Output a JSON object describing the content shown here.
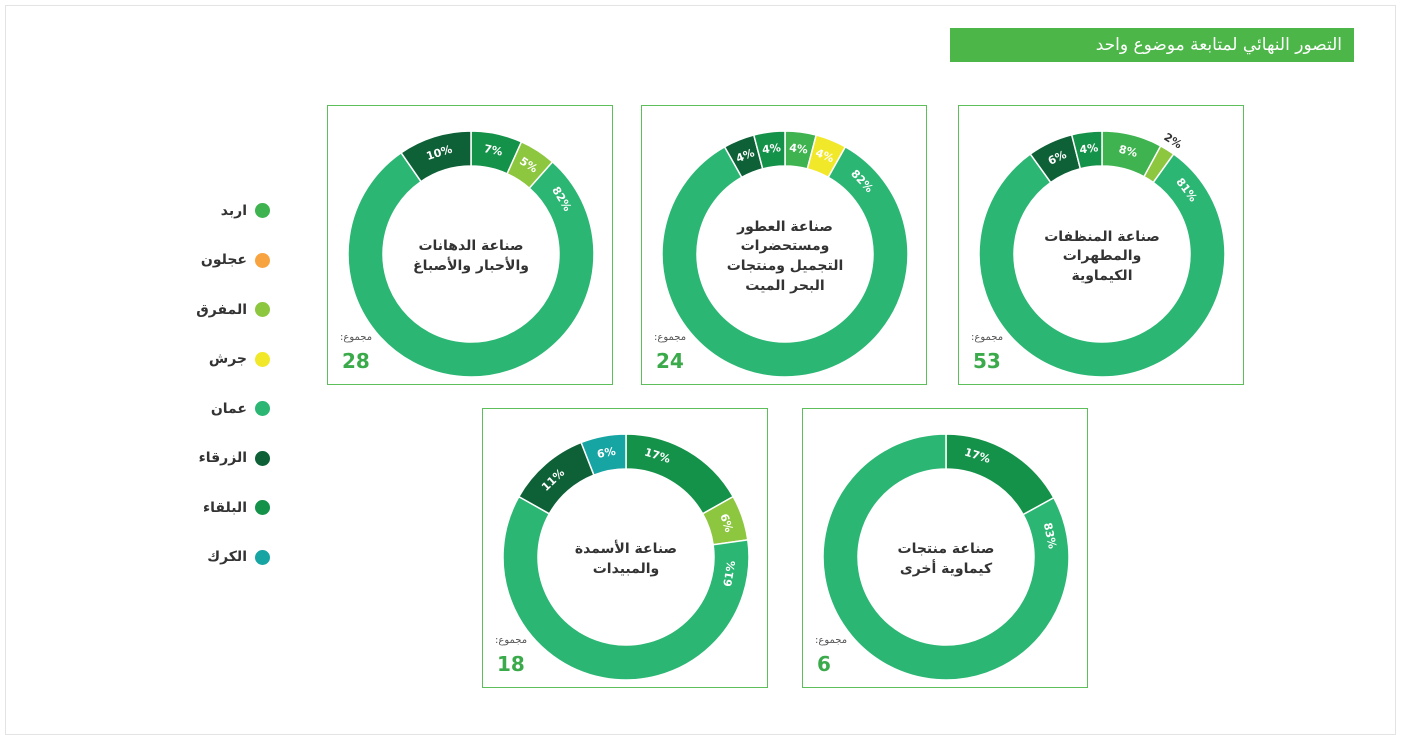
{
  "title": "التصور النهائي لمتابعة موضوع واحد",
  "legend": [
    {
      "name": "اربد",
      "color": "#3fb34f"
    },
    {
      "name": "عجلون",
      "color": "#f7a440"
    },
    {
      "name": "المفرق",
      "color": "#8dc63f"
    },
    {
      "name": "جرش",
      "color": "#f2e82a"
    },
    {
      "name": "عمان",
      "color": "#2bb673"
    },
    {
      "name": "الزرقاء",
      "color": "#0e6137"
    },
    {
      "name": "البلقاء",
      "color": "#15924a"
    },
    {
      "name": "الكرك",
      "color": "#17a5a3"
    }
  ],
  "chart_data": [
    {
      "type": "donut",
      "title": "صناعة الدهانات والأحبار والأصباغ",
      "total_label": "مجموع:",
      "total": 28,
      "values": [
        7,
        5,
        82,
        10
      ],
      "value_labels": [
        "7%",
        "5%",
        "82%",
        "10%"
      ],
      "colors": [
        "#15924a",
        "#8dc63f",
        "#2bb673",
        "#0e6137"
      ]
    },
    {
      "type": "donut",
      "title": "صناعة العطور ومستحضرات التجميل ومنتجات البحر الميت",
      "total_label": "مجموع:",
      "total": 24,
      "values": [
        4,
        4,
        82,
        4,
        4
      ],
      "value_labels": [
        "4%",
        "4%",
        "82%",
        "4%",
        "4%"
      ],
      "colors": [
        "#3fb34f",
        "#f2e82a",
        "#2bb673",
        "#0e6137",
        "#15924a"
      ]
    },
    {
      "type": "donut",
      "title": "صناعة المنظفات والمطهرات الكيماوية",
      "total_label": "مجموع:",
      "total": 53,
      "values": [
        8,
        2,
        81,
        6,
        4
      ],
      "value_labels": [
        "8%",
        "2%",
        "81%",
        "6%",
        "4%"
      ],
      "colors": [
        "#3fb34f",
        "#8dc63f",
        "#2bb673",
        "#0e6137",
        "#15924a"
      ]
    },
    {
      "type": "donut",
      "title": "صناعة الأسمدة والمبيدات",
      "total_label": "مجموع:",
      "total": 18,
      "values": [
        17,
        6,
        61,
        11,
        6
      ],
      "value_labels": [
        "17%",
        "6%",
        "61%",
        "11%",
        "6%"
      ],
      "colors": [
        "#15924a",
        "#8dc63f",
        "#2bb673",
        "#0e6137",
        "#17a5a3"
      ]
    },
    {
      "type": "donut",
      "title": "صناعة منتجات كيماوية أخرى",
      "total_label": "مجموع:",
      "total": 6,
      "values": [
        17,
        83
      ],
      "value_labels": [
        "17%",
        "83%"
      ],
      "colors": [
        "#15924a",
        "#2bb673"
      ]
    }
  ]
}
